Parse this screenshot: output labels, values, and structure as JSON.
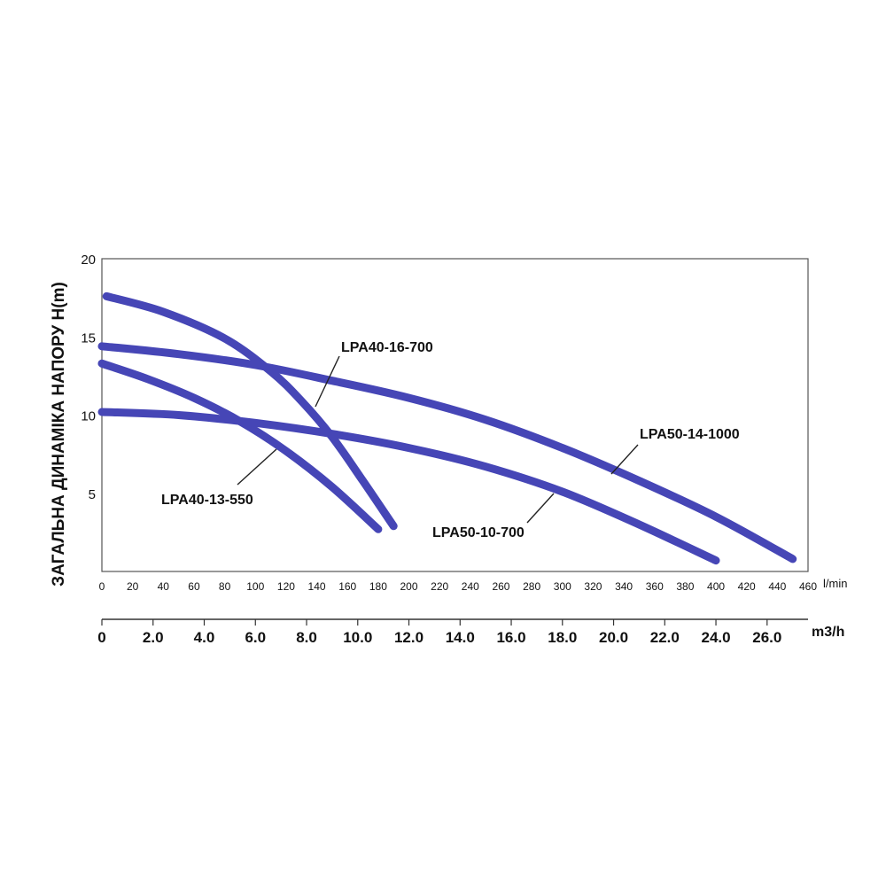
{
  "chart_data": {
    "type": "line",
    "ylabel": "ЗАГАЛЬНА ДИНАМІКА НАПОРУ H(m)",
    "x_unit": "l/min",
    "x2_unit": "m3/h",
    "y_ticks": [
      "5",
      "10",
      "15",
      "20"
    ],
    "x_ticks": [
      "0",
      "20",
      "40",
      "60",
      "80",
      "100",
      "120",
      "140",
      "160",
      "180",
      "200",
      "220",
      "240",
      "260",
      "280",
      "300",
      "320",
      "340",
      "360",
      "380",
      "400",
      "420",
      "440",
      "460"
    ],
    "x2_ticks": [
      "0",
      "2.0",
      "4.0",
      "6.0",
      "8.0",
      "10.0",
      "12.0",
      "14.0",
      "16.0",
      "18.0",
      "20.0",
      "22.0",
      "24.0",
      "26.0"
    ],
    "xlim": [
      0,
      460
    ],
    "ylim": [
      0,
      20
    ],
    "x2lim": [
      0,
      27.6
    ],
    "line_color": "#4646b6",
    "series": [
      {
        "name": "LPA40-16-700",
        "x": [
          3,
          40,
          80,
          110,
          130,
          150,
          170,
          190
        ],
        "y": [
          17.6,
          16.6,
          14.9,
          12.8,
          10.9,
          8.6,
          5.8,
          2.9
        ]
      },
      {
        "name": "LPA40-13-550",
        "x": [
          0,
          30,
          60,
          90,
          120,
          150,
          180
        ],
        "y": [
          13.3,
          12.3,
          11.1,
          9.6,
          7.7,
          5.4,
          2.7
        ]
      },
      {
        "name": "LPA50-14-1000",
        "x": [
          0,
          50,
          100,
          150,
          200,
          250,
          300,
          350,
          400,
          450
        ],
        "y": [
          14.4,
          13.9,
          13.2,
          12.2,
          11.1,
          9.7,
          7.9,
          5.8,
          3.5,
          0.8
        ]
      },
      {
        "name": "LPA50-10-700",
        "x": [
          0,
          50,
          100,
          150,
          200,
          250,
          300,
          350,
          400
        ],
        "y": [
          10.2,
          10.0,
          9.5,
          8.8,
          7.9,
          6.7,
          5.1,
          3.0,
          0.7
        ]
      }
    ],
    "labels": [
      {
        "text": "LPA40-16-700",
        "series": "LPA40-16-700"
      },
      {
        "text": "LPA40-13-550",
        "series": "LPA40-13-550"
      },
      {
        "text": "LPA50-14-1000",
        "series": "LPA50-14-1000"
      },
      {
        "text": "LPA50-10-700",
        "series": "LPA50-10-700"
      }
    ]
  }
}
